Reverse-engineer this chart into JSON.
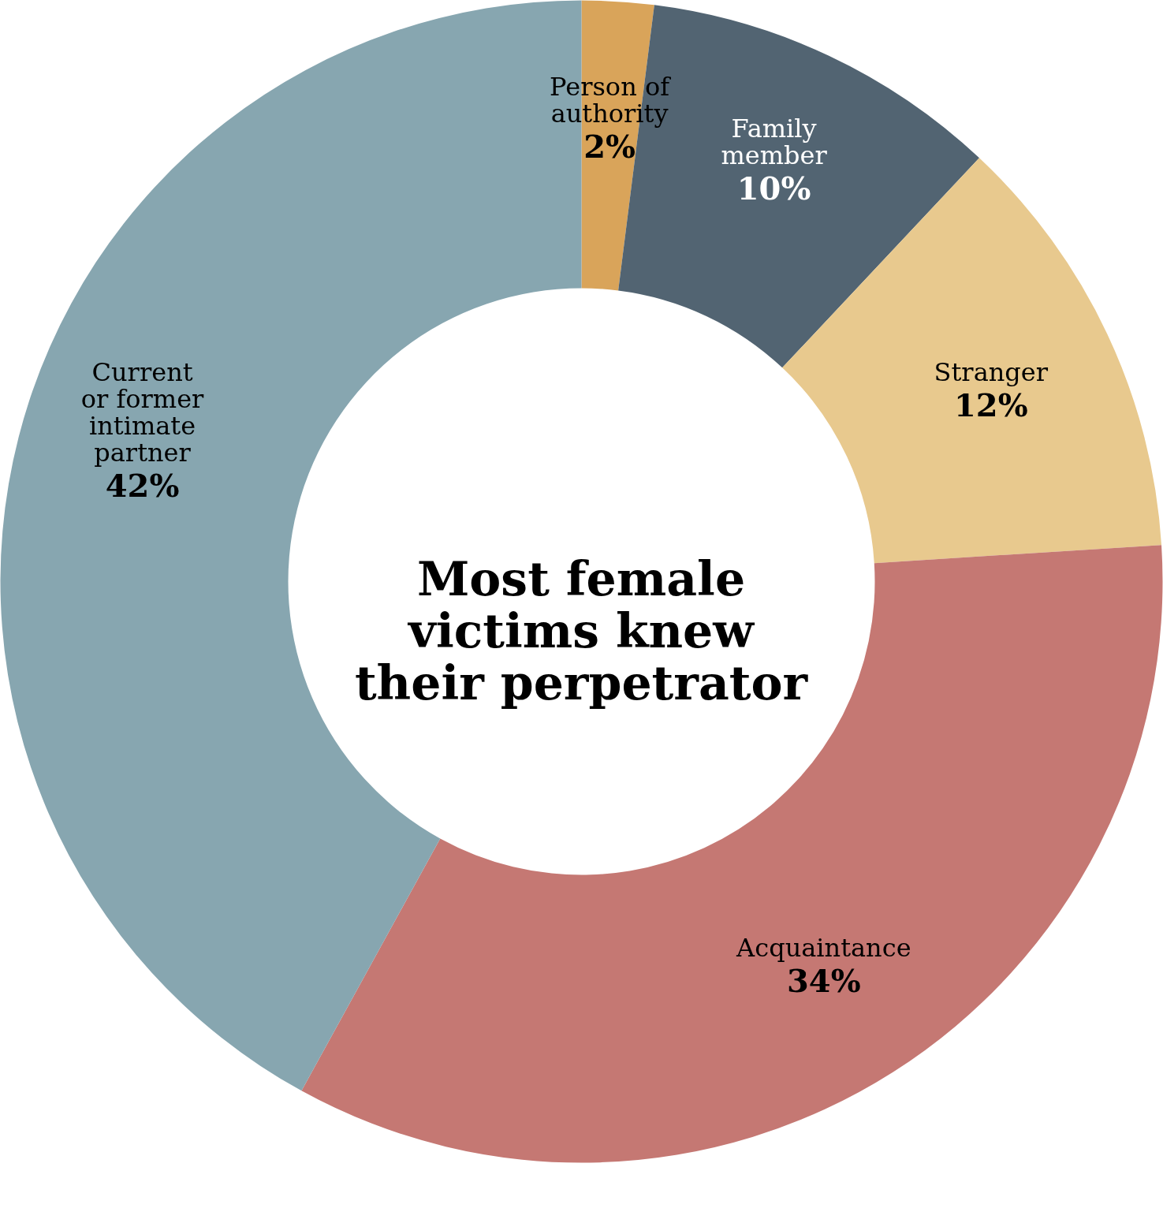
{
  "chart_data": {
    "type": "donut",
    "title": "Most female victims knew their perpetrator",
    "categories": [
      "Person of authority",
      "Family member",
      "Stranger",
      "Acquaintance",
      "Current or former intimate partner"
    ],
    "values": [
      2,
      10,
      12,
      34,
      42
    ],
    "value_labels": [
      "2%",
      "10%",
      "12%",
      "34%",
      "42%"
    ],
    "colors": [
      "#d9a45a",
      "#526472",
      "#e8c98e",
      "#c57873",
      "#87a6b0"
    ]
  }
}
